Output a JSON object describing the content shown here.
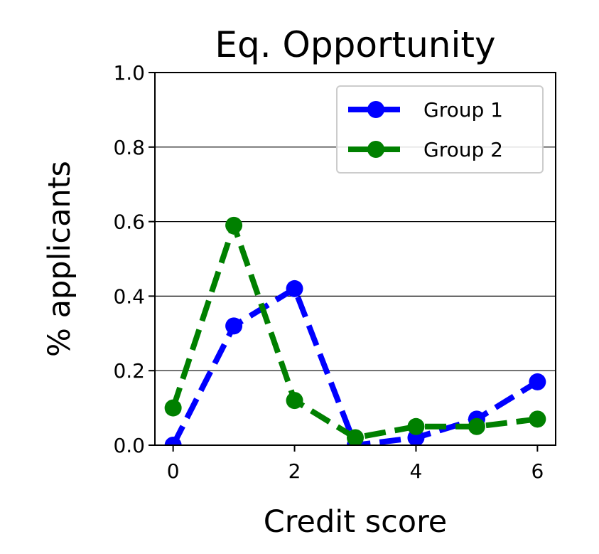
{
  "chart_data": {
    "type": "line",
    "title": "Eq. Opportunity",
    "xlabel": "Credit score",
    "ylabel": "% applicants",
    "x": [
      0,
      1,
      2,
      3,
      4,
      5,
      6
    ],
    "xlim": [
      -0.3,
      6.3
    ],
    "ylim": [
      0.0,
      1.0
    ],
    "xticks": [
      0,
      2,
      4,
      6
    ],
    "xtick_labels": [
      "0",
      "2",
      "4",
      "6"
    ],
    "yticks": [
      0.0,
      0.2,
      0.4,
      0.6,
      0.8,
      1.0
    ],
    "ytick_labels": [
      "0.0",
      "0.2",
      "0.4",
      "0.6",
      "0.8",
      "1.0"
    ],
    "grid": "horizontal",
    "legend_position": "top-right",
    "series": [
      {
        "name": "Group 1",
        "color": "#0000ff",
        "line_style": "dashed",
        "marker": "circle",
        "values": [
          0.0,
          0.32,
          0.42,
          0.0,
          0.02,
          0.07,
          0.17
        ]
      },
      {
        "name": "Group 2",
        "color": "#008000",
        "line_style": "dashed",
        "marker": "circle",
        "values": [
          0.1,
          0.59,
          0.12,
          0.02,
          0.05,
          0.05,
          0.07
        ]
      }
    ]
  }
}
